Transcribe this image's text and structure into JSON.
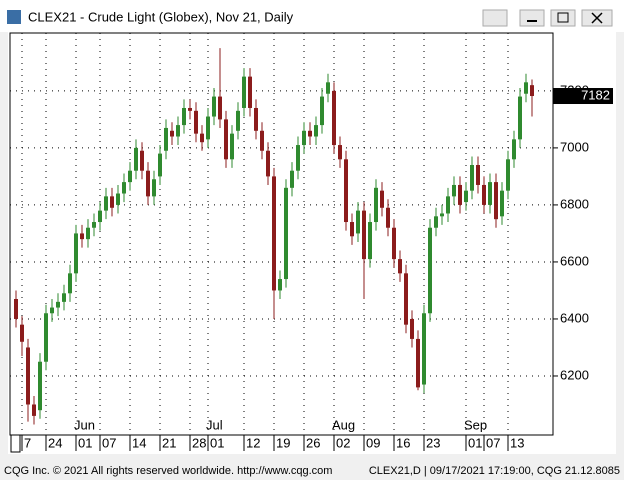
{
  "chart_data": {
    "type": "candlestick",
    "title": "CLEX21 - Crude Light (Globex), Nov 21, Daily",
    "open": [
      6470,
      6380,
      6300,
      6100,
      6080,
      6250,
      6420,
      6440,
      6460,
      6490,
      6560,
      6700,
      6680,
      6720,
      6740,
      6780,
      6830,
      6800,
      6840,
      6880,
      6920,
      6990,
      6920,
      6830,
      6900,
      6990,
      7060,
      7040,
      7080,
      7140,
      7130,
      7050,
      7030,
      7110,
      7180,
      7100,
      6960,
      7060,
      7140,
      7250,
      7140,
      7060,
      6990,
      6900,
      6500,
      6540,
      6860,
      6920,
      7010,
      7060,
      7040,
      7080,
      7190,
      7200,
      7010,
      6960,
      6740,
      6700,
      6780,
      6610,
      6740,
      6850,
      6790,
      6720,
      6610,
      6560,
      6400,
      6330,
      6170,
      6420,
      6720,
      6760,
      6770,
      6830,
      6870,
      6810,
      6850,
      6940,
      6870,
      6800,
      6880,
      6760,
      6850,
      6960,
      7030,
      7190,
      7220
    ],
    "high": [
      6500,
      6410,
      6330,
      6130,
      6280,
      6450,
      6470,
      6490,
      6520,
      6590,
      6730,
      6730,
      6750,
      6770,
      6810,
      6860,
      6860,
      6870,
      6910,
      6950,
      7030,
      7020,
      6950,
      6920,
      7010,
      7100,
      7090,
      7110,
      7170,
      7170,
      7160,
      7080,
      7140,
      7210,
      7350,
      7130,
      7080,
      7160,
      7280,
      7280,
      7170,
      7090,
      7020,
      6930,
      6570,
      6890,
      6950,
      7040,
      7090,
      7090,
      7110,
      7210,
      7260,
      7230,
      7040,
      6990,
      6770,
      6810,
      6810,
      6770,
      6890,
      6880,
      6820,
      6750,
      6640,
      6590,
      6430,
      6360,
      6450,
      6750,
      6790,
      6800,
      6860,
      6900,
      6900,
      6880,
      6970,
      6970,
      6900,
      6910,
      6910,
      6880,
      6990,
      7060,
      7210,
      7260,
      7240
    ],
    "low": [
      6370,
      6270,
      6040,
      6030,
      6050,
      6220,
      6390,
      6410,
      6430,
      6460,
      6530,
      6650,
      6650,
      6690,
      6710,
      6750,
      6760,
      6770,
      6810,
      6850,
      6890,
      6890,
      6800,
      6800,
      6870,
      6960,
      7010,
      7010,
      7050,
      7100,
      7020,
      6990,
      7000,
      7080,
      7070,
      6930,
      6930,
      7030,
      7110,
      7110,
      7030,
      6960,
      6870,
      6400,
      6470,
      6510,
      6830,
      6890,
      6980,
      7010,
      7010,
      7050,
      7160,
      6980,
      6930,
      6710,
      6660,
      6670,
      6470,
      6580,
      6710,
      6760,
      6690,
      6580,
      6530,
      6350,
      6300,
      6150,
      6140,
      6390,
      6690,
      6730,
      6740,
      6800,
      6770,
      6780,
      6820,
      6840,
      6770,
      6770,
      6720,
      6730,
      6820,
      6930,
      7000,
      7160,
      7110
    ],
    "close": [
      6400,
      6320,
      6100,
      6060,
      6250,
      6420,
      6440,
      6460,
      6490,
      6560,
      6700,
      6680,
      6720,
      6740,
      6780,
      6830,
      6790,
      6840,
      6880,
      6920,
      7000,
      6920,
      6830,
      6890,
      6980,
      7070,
      7040,
      7080,
      7140,
      7130,
      7050,
      7020,
      7110,
      7180,
      7100,
      6960,
      7050,
      7130,
      7250,
      7140,
      7060,
      6990,
      6900,
      6500,
      6540,
      6860,
      6920,
      7010,
      7060,
      7040,
      7080,
      7180,
      7230,
      7010,
      6960,
      6740,
      6690,
      6780,
      6610,
      6740,
      6860,
      6790,
      6720,
      6610,
      6560,
      6380,
      6330,
      6160,
      6420,
      6720,
      6760,
      6770,
      6830,
      6870,
      6800,
      6850,
      6940,
      6870,
      6800,
      6880,
      6750,
      6850,
      6960,
      7030,
      7180,
      7230,
      7182
    ],
    "last_price": 7182,
    "up_color": "#2f8a2f",
    "down_color": "#8b1c1c",
    "ylim": [
      5993,
      7403
    ],
    "yticks": [
      6200,
      6400,
      6600,
      6800,
      7000,
      7200
    ],
    "xticks": [
      {
        "value": 1,
        "label": "7"
      },
      {
        "value": 5,
        "label": "24"
      },
      {
        "value": 10,
        "label": "01"
      },
      {
        "value": 14,
        "label": "07"
      },
      {
        "value": 19,
        "label": "14"
      },
      {
        "value": 24,
        "label": "21"
      },
      {
        "value": 29,
        "label": "28"
      },
      {
        "value": 32,
        "label": "01"
      },
      {
        "value": 38,
        "label": "12"
      },
      {
        "value": 43,
        "label": "19"
      },
      {
        "value": 48,
        "label": "26"
      },
      {
        "value": 53,
        "label": "02"
      },
      {
        "value": 58,
        "label": "09"
      },
      {
        "value": 63,
        "label": "16"
      },
      {
        "value": 68,
        "label": "23"
      },
      {
        "value": 75,
        "label": "01"
      },
      {
        "value": 78,
        "label": "07"
      },
      {
        "value": 82,
        "label": "13"
      }
    ],
    "month_labels": [
      {
        "value": 10,
        "label": "Jun"
      },
      {
        "value": 32,
        "label": "Jul"
      },
      {
        "value": 53,
        "label": "Aug"
      },
      {
        "value": 75,
        "label": "Sep"
      }
    ],
    "grid": true
  },
  "footer": {
    "left": "CQG Inc. © 2021 All rights reserved worldwide. http://www.cqg.com",
    "right": "CLEX21,D | 09/17/2021 17:19:00, CQG 21.12.8085"
  }
}
